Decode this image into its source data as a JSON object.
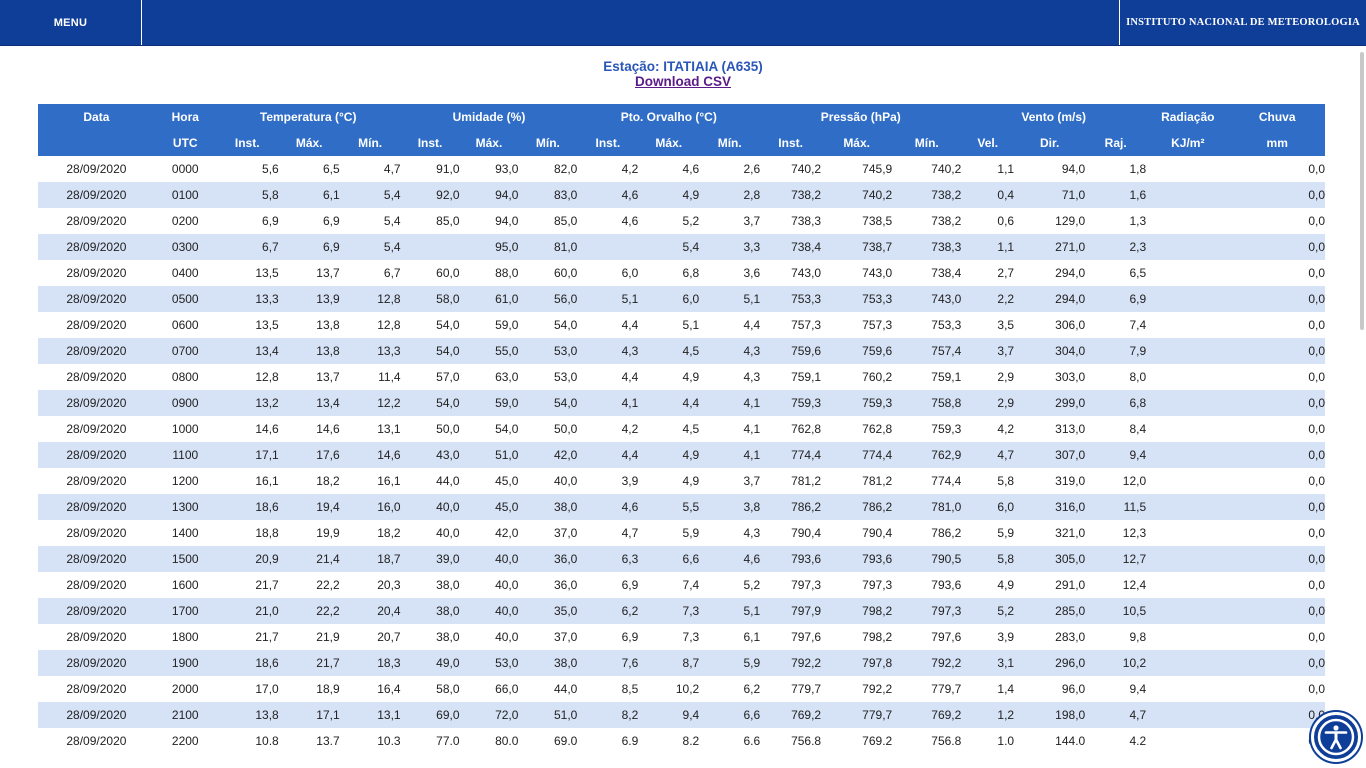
{
  "topbar": {
    "menu_label": "MENU",
    "brand_label": "INSTITUTO NACIONAL DE METEOROLOGIA"
  },
  "station": {
    "title": "Estação: ITATIAIA (A635)",
    "download_label": "Download CSV"
  },
  "table": {
    "group_headers": [
      "Data",
      "Hora",
      "Temperatura (°C)",
      "Umidade (%)",
      "Pto. Orvalho (°C)",
      "Pressão (hPa)",
      "Vento (m/s)",
      "Radiação",
      "Chuva"
    ],
    "sub_headers": [
      "",
      "UTC",
      "Inst.",
      "Máx.",
      "Mín.",
      "Inst.",
      "Máx.",
      "Mín.",
      "Inst.",
      "Máx.",
      "Mín.",
      "Inst.",
      "Máx.",
      "Mín.",
      "Vel.",
      "Dir.",
      "Raj.",
      "KJ/m²",
      "mm"
    ],
    "rows": [
      [
        "28/09/2020",
        "0000",
        "5,6",
        "6,5",
        "4,7",
        "91,0",
        "93,0",
        "82,0",
        "4,2",
        "4,6",
        "2,6",
        "740,2",
        "745,9",
        "740,2",
        "1,1",
        "94,0",
        "1,8",
        "",
        "0,0"
      ],
      [
        "28/09/2020",
        "0100",
        "5,8",
        "6,1",
        "5,4",
        "92,0",
        "94,0",
        "83,0",
        "4,6",
        "4,9",
        "2,8",
        "738,2",
        "740,2",
        "738,2",
        "0,4",
        "71,0",
        "1,6",
        "",
        "0,0"
      ],
      [
        "28/09/2020",
        "0200",
        "6,9",
        "6,9",
        "5,4",
        "85,0",
        "94,0",
        "85,0",
        "4,6",
        "5,2",
        "3,7",
        "738,3",
        "738,5",
        "738,2",
        "0,6",
        "129,0",
        "1,3",
        "",
        "0,0"
      ],
      [
        "28/09/2020",
        "0300",
        "6,7",
        "6,9",
        "5,4",
        "",
        "95,0",
        "81,0",
        "",
        "5,4",
        "3,3",
        "738,4",
        "738,7",
        "738,3",
        "1,1",
        "271,0",
        "2,3",
        "",
        "0,0"
      ],
      [
        "28/09/2020",
        "0400",
        "13,5",
        "13,7",
        "6,7",
        "60,0",
        "88,0",
        "60,0",
        "6,0",
        "6,8",
        "3,6",
        "743,0",
        "743,0",
        "738,4",
        "2,7",
        "294,0",
        "6,5",
        "",
        "0,0"
      ],
      [
        "28/09/2020",
        "0500",
        "13,3",
        "13,9",
        "12,8",
        "58,0",
        "61,0",
        "56,0",
        "5,1",
        "6,0",
        "5,1",
        "753,3",
        "753,3",
        "743,0",
        "2,2",
        "294,0",
        "6,9",
        "",
        "0,0"
      ],
      [
        "28/09/2020",
        "0600",
        "13,5",
        "13,8",
        "12,8",
        "54,0",
        "59,0",
        "54,0",
        "4,4",
        "5,1",
        "4,4",
        "757,3",
        "757,3",
        "753,3",
        "3,5",
        "306,0",
        "7,4",
        "",
        "0,0"
      ],
      [
        "28/09/2020",
        "0700",
        "13,4",
        "13,8",
        "13,3",
        "54,0",
        "55,0",
        "53,0",
        "4,3",
        "4,5",
        "4,3",
        "759,6",
        "759,6",
        "757,4",
        "3,7",
        "304,0",
        "7,9",
        "",
        "0,0"
      ],
      [
        "28/09/2020",
        "0800",
        "12,8",
        "13,7",
        "11,4",
        "57,0",
        "63,0",
        "53,0",
        "4,4",
        "4,9",
        "4,3",
        "759,1",
        "760,2",
        "759,1",
        "2,9",
        "303,0",
        "8,0",
        "",
        "0,0"
      ],
      [
        "28/09/2020",
        "0900",
        "13,2",
        "13,4",
        "12,2",
        "54,0",
        "59,0",
        "54,0",
        "4,1",
        "4,4",
        "4,1",
        "759,3",
        "759,3",
        "758,8",
        "2,9",
        "299,0",
        "6,8",
        "",
        "0,0"
      ],
      [
        "28/09/2020",
        "1000",
        "14,6",
        "14,6",
        "13,1",
        "50,0",
        "54,0",
        "50,0",
        "4,2",
        "4,5",
        "4,1",
        "762,8",
        "762,8",
        "759,3",
        "4,2",
        "313,0",
        "8,4",
        "",
        "0,0"
      ],
      [
        "28/09/2020",
        "1100",
        "17,1",
        "17,6",
        "14,6",
        "43,0",
        "51,0",
        "42,0",
        "4,4",
        "4,9",
        "4,1",
        "774,4",
        "774,4",
        "762,9",
        "4,7",
        "307,0",
        "9,4",
        "",
        "0,0"
      ],
      [
        "28/09/2020",
        "1200",
        "16,1",
        "18,2",
        "16,1",
        "44,0",
        "45,0",
        "40,0",
        "3,9",
        "4,9",
        "3,7",
        "781,2",
        "781,2",
        "774,4",
        "5,8",
        "319,0",
        "12,0",
        "",
        "0,0"
      ],
      [
        "28/09/2020",
        "1300",
        "18,6",
        "19,4",
        "16,0",
        "40,0",
        "45,0",
        "38,0",
        "4,6",
        "5,5",
        "3,8",
        "786,2",
        "786,2",
        "781,0",
        "6,0",
        "316,0",
        "11,5",
        "",
        "0,0"
      ],
      [
        "28/09/2020",
        "1400",
        "18,8",
        "19,9",
        "18,2",
        "40,0",
        "42,0",
        "37,0",
        "4,7",
        "5,9",
        "4,3",
        "790,4",
        "790,4",
        "786,2",
        "5,9",
        "321,0",
        "12,3",
        "",
        "0,0"
      ],
      [
        "28/09/2020",
        "1500",
        "20,9",
        "21,4",
        "18,7",
        "39,0",
        "40,0",
        "36,0",
        "6,3",
        "6,6",
        "4,6",
        "793,6",
        "793,6",
        "790,5",
        "5,8",
        "305,0",
        "12,7",
        "",
        "0,0"
      ],
      [
        "28/09/2020",
        "1600",
        "21,7",
        "22,2",
        "20,3",
        "38,0",
        "40,0",
        "36,0",
        "6,9",
        "7,4",
        "5,2",
        "797,3",
        "797,3",
        "793,6",
        "4,9",
        "291,0",
        "12,4",
        "",
        "0,0"
      ],
      [
        "28/09/2020",
        "1700",
        "21,0",
        "22,2",
        "20,4",
        "38,0",
        "40,0",
        "35,0",
        "6,2",
        "7,3",
        "5,1",
        "797,9",
        "798,2",
        "797,3",
        "5,2",
        "285,0",
        "10,5",
        "",
        "0,0"
      ],
      [
        "28/09/2020",
        "1800",
        "21,7",
        "21,9",
        "20,7",
        "38,0",
        "40,0",
        "37,0",
        "6,9",
        "7,3",
        "6,1",
        "797,6",
        "798,2",
        "797,6",
        "3,9",
        "283,0",
        "9,8",
        "",
        "0,0"
      ],
      [
        "28/09/2020",
        "1900",
        "18,6",
        "21,7",
        "18,3",
        "49,0",
        "53,0",
        "38,0",
        "7,6",
        "8,7",
        "5,9",
        "792,2",
        "797,8",
        "792,2",
        "3,1",
        "296,0",
        "10,2",
        "",
        "0,0"
      ],
      [
        "28/09/2020",
        "2000",
        "17,0",
        "18,9",
        "16,4",
        "58,0",
        "66,0",
        "44,0",
        "8,5",
        "10,2",
        "6,2",
        "779,7",
        "792,2",
        "779,7",
        "1,4",
        "96,0",
        "9,4",
        "",
        "0,0"
      ],
      [
        "28/09/2020",
        "2100",
        "13,8",
        "17,1",
        "13,1",
        "69,0",
        "72,0",
        "51,0",
        "8,2",
        "9,4",
        "6,6",
        "769,2",
        "779,7",
        "769,2",
        "1,2",
        "198,0",
        "4,7",
        "",
        "0,0"
      ],
      [
        "28/09/2020",
        "2200",
        "10,8",
        "13,7",
        "10,3",
        "77,0",
        "80,0",
        "69,0",
        "6,9",
        "8,2",
        "6,6",
        "756,8",
        "769,2",
        "756,8",
        "1,0",
        "144,0",
        "4,2",
        "",
        "0,0"
      ]
    ]
  },
  "icons": {
    "accessibility": "accessibility-icon"
  },
  "colors": {
    "brand_blue": "#0f3e99",
    "header_blue": "#2f6dc6",
    "row_alt": "#d6e2f5"
  }
}
